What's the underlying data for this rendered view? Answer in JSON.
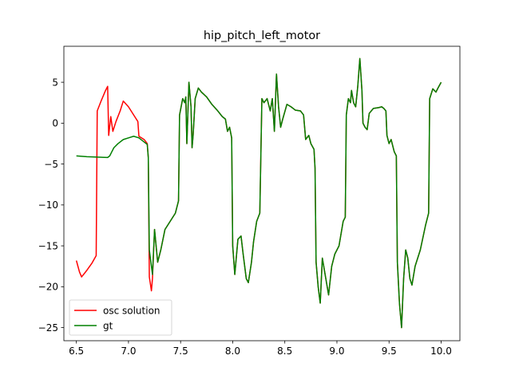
{
  "chart_data": {
    "type": "line",
    "title": "hip_pitch_left_motor",
    "xlabel": "",
    "ylabel": "",
    "xlim": [
      6.38,
      10.18
    ],
    "ylim": [
      -26.6,
      9.4
    ],
    "xticks": [
      6.5,
      7.0,
      7.5,
      8.0,
      8.5,
      9.0,
      9.5,
      10.0
    ],
    "yticks": [
      -25,
      -20,
      -15,
      -10,
      -5,
      0,
      5
    ],
    "xtick_labels": [
      "6.5",
      "7.0",
      "7.5",
      "8.0",
      "8.5",
      "9.0",
      "9.5",
      "10.0"
    ],
    "ytick_labels": [
      "−25",
      "−20",
      "−15",
      "−10",
      "−5",
      "0",
      "5"
    ],
    "grid": false,
    "legend_position": "lower-left",
    "series": [
      {
        "name": "osc solution",
        "color": "#ff0000",
        "points": [
          [
            6.5,
            -16.8
          ],
          [
            6.53,
            -18.2
          ],
          [
            6.55,
            -18.8
          ],
          [
            6.6,
            -18.0
          ],
          [
            6.65,
            -17.1
          ],
          [
            6.69,
            -16.2
          ],
          [
            6.7,
            1.5
          ],
          [
            6.74,
            2.8
          ],
          [
            6.78,
            4.0
          ],
          [
            6.8,
            4.5
          ],
          [
            6.81,
            -1.5
          ],
          [
            6.83,
            0.8
          ],
          [
            6.85,
            -1.0
          ],
          [
            6.88,
            0.2
          ],
          [
            6.92,
            1.5
          ],
          [
            6.95,
            2.7
          ],
          [
            7.0,
            2.0
          ],
          [
            7.05,
            1.0
          ],
          [
            7.09,
            0.2
          ],
          [
            7.1,
            -1.6
          ],
          [
            7.15,
            -2.0
          ],
          [
            7.18,
            -2.5
          ],
          [
            7.19,
            -4.2
          ],
          [
            7.2,
            -18.8
          ],
          [
            7.22,
            -20.5
          ],
          [
            7.23,
            -19.0
          ],
          [
            7.25,
            -13.0
          ],
          [
            7.28,
            -17.0
          ],
          [
            7.31,
            -15.5
          ],
          [
            7.35,
            -13.0
          ],
          [
            7.4,
            -12.0
          ],
          [
            7.45,
            -11.0
          ],
          [
            7.48,
            -9.5
          ],
          [
            7.49,
            1.0
          ],
          [
            7.52,
            3.0
          ],
          [
            7.54,
            2.5
          ],
          [
            7.55,
            3.2
          ],
          [
            7.56,
            -2.5
          ],
          [
            7.58,
            5.0
          ],
          [
            7.6,
            2.0
          ],
          [
            7.61,
            -3.0
          ],
          [
            7.62,
            -1.5
          ],
          [
            7.64,
            3.0
          ],
          [
            7.67,
            4.3
          ],
          [
            7.7,
            3.8
          ],
          [
            7.75,
            3.2
          ],
          [
            7.8,
            2.3
          ],
          [
            7.85,
            1.6
          ],
          [
            7.9,
            0.8
          ],
          [
            7.93,
            0.5
          ],
          [
            7.95,
            -1.0
          ],
          [
            7.97,
            -0.5
          ],
          [
            7.99,
            -1.8
          ],
          [
            8.0,
            -15.0
          ],
          [
            8.02,
            -18.5
          ],
          [
            8.05,
            -14.2
          ],
          [
            8.08,
            -13.8
          ],
          [
            8.1,
            -16.0
          ],
          [
            8.13,
            -19.0
          ],
          [
            8.15,
            -19.5
          ],
          [
            8.18,
            -17.0
          ],
          [
            8.2,
            -14.5
          ],
          [
            8.23,
            -12.0
          ],
          [
            8.26,
            -11.0
          ],
          [
            8.28,
            3.0
          ],
          [
            8.3,
            2.5
          ],
          [
            8.33,
            3.0
          ],
          [
            8.36,
            1.5
          ],
          [
            8.38,
            3.0
          ],
          [
            8.4,
            -1.0
          ],
          [
            8.42,
            6.0
          ],
          [
            8.44,
            2.0
          ],
          [
            8.46,
            -0.5
          ],
          [
            8.48,
            0.5
          ],
          [
            8.52,
            2.3
          ],
          [
            8.56,
            2.0
          ],
          [
            8.6,
            1.6
          ],
          [
            8.65,
            1.5
          ],
          [
            8.68,
            1.0
          ],
          [
            8.7,
            -2.0
          ],
          [
            8.73,
            -1.5
          ],
          [
            8.75,
            -2.5
          ],
          [
            8.78,
            -3.2
          ],
          [
            8.79,
            -5.5
          ],
          [
            8.8,
            -17.0
          ],
          [
            8.82,
            -20.0
          ],
          [
            8.84,
            -22.0
          ],
          [
            8.86,
            -16.5
          ],
          [
            8.88,
            -18.0
          ],
          [
            8.9,
            -19.5
          ],
          [
            8.92,
            -21.0
          ],
          [
            8.95,
            -17.5
          ],
          [
            8.98,
            -16.0
          ],
          [
            9.02,
            -15.0
          ],
          [
            9.06,
            -12.0
          ],
          [
            9.08,
            -11.5
          ],
          [
            9.09,
            1.0
          ],
          [
            9.11,
            3.0
          ],
          [
            9.13,
            2.5
          ],
          [
            9.14,
            4.0
          ],
          [
            9.16,
            2.5
          ],
          [
            9.18,
            2.0
          ],
          [
            9.2,
            4.5
          ],
          [
            9.22,
            7.9
          ],
          [
            9.24,
            4.0
          ],
          [
            9.25,
            0.0
          ],
          [
            9.27,
            -0.5
          ],
          [
            9.29,
            -0.8
          ],
          [
            9.31,
            1.2
          ],
          [
            9.35,
            1.8
          ],
          [
            9.4,
            1.9
          ],
          [
            9.43,
            2.0
          ],
          [
            9.45,
            1.8
          ],
          [
            9.47,
            1.5
          ],
          [
            9.48,
            -1.5
          ],
          [
            9.5,
            -2.5
          ],
          [
            9.52,
            -2.0
          ],
          [
            9.55,
            -3.5
          ],
          [
            9.57,
            -4.0
          ],
          [
            9.58,
            -17.0
          ],
          [
            9.6,
            -22.0
          ],
          [
            9.62,
            -25.0
          ],
          [
            9.64,
            -19.0
          ],
          [
            9.66,
            -15.5
          ],
          [
            9.68,
            -16.5
          ],
          [
            9.7,
            -19.0
          ],
          [
            9.72,
            -19.8
          ],
          [
            9.75,
            -17.5
          ],
          [
            9.8,
            -15.5
          ],
          [
            9.85,
            -12.5
          ],
          [
            9.88,
            -11.0
          ],
          [
            9.89,
            3.0
          ],
          [
            9.92,
            4.2
          ],
          [
            9.95,
            3.8
          ],
          [
            9.97,
            4.3
          ],
          [
            10.0,
            5.0
          ]
        ]
      },
      {
        "name": "gt",
        "color": "#008000",
        "points": [
          [
            6.5,
            -4.0
          ],
          [
            6.6,
            -4.1
          ],
          [
            6.7,
            -4.15
          ],
          [
            6.8,
            -4.2
          ],
          [
            6.82,
            -4.0
          ],
          [
            6.84,
            -3.5
          ],
          [
            6.86,
            -3.0
          ],
          [
            6.9,
            -2.5
          ],
          [
            6.95,
            -2.0
          ],
          [
            7.0,
            -1.8
          ],
          [
            7.05,
            -1.6
          ],
          [
            7.1,
            -1.8
          ],
          [
            7.15,
            -2.3
          ],
          [
            7.18,
            -2.6
          ],
          [
            7.19,
            -4.2
          ],
          [
            7.2,
            -15.5
          ],
          [
            7.22,
            -17.5
          ],
          [
            7.23,
            -18.5
          ],
          [
            7.25,
            -13.0
          ],
          [
            7.28,
            -17.0
          ],
          [
            7.31,
            -15.5
          ],
          [
            7.35,
            -13.0
          ],
          [
            7.4,
            -12.0
          ],
          [
            7.45,
            -11.0
          ],
          [
            7.48,
            -9.5
          ],
          [
            7.49,
            1.0
          ],
          [
            7.52,
            3.0
          ],
          [
            7.54,
            2.5
          ],
          [
            7.55,
            3.2
          ],
          [
            7.56,
            -2.5
          ],
          [
            7.58,
            5.0
          ],
          [
            7.6,
            2.0
          ],
          [
            7.61,
            -3.0
          ],
          [
            7.62,
            -1.5
          ],
          [
            7.64,
            3.0
          ],
          [
            7.67,
            4.3
          ],
          [
            7.7,
            3.8
          ],
          [
            7.75,
            3.2
          ],
          [
            7.8,
            2.3
          ],
          [
            7.85,
            1.6
          ],
          [
            7.9,
            0.8
          ],
          [
            7.93,
            0.5
          ],
          [
            7.95,
            -1.0
          ],
          [
            7.97,
            -0.5
          ],
          [
            7.99,
            -1.8
          ],
          [
            8.0,
            -15.0
          ],
          [
            8.02,
            -18.5
          ],
          [
            8.05,
            -14.2
          ],
          [
            8.08,
            -13.8
          ],
          [
            8.1,
            -16.0
          ],
          [
            8.13,
            -19.0
          ],
          [
            8.15,
            -19.5
          ],
          [
            8.18,
            -17.0
          ],
          [
            8.2,
            -14.5
          ],
          [
            8.23,
            -12.0
          ],
          [
            8.26,
            -11.0
          ],
          [
            8.28,
            3.0
          ],
          [
            8.3,
            2.5
          ],
          [
            8.33,
            3.0
          ],
          [
            8.36,
            1.5
          ],
          [
            8.38,
            3.0
          ],
          [
            8.4,
            -1.0
          ],
          [
            8.42,
            6.0
          ],
          [
            8.44,
            2.0
          ],
          [
            8.46,
            -0.5
          ],
          [
            8.48,
            0.5
          ],
          [
            8.52,
            2.3
          ],
          [
            8.56,
            2.0
          ],
          [
            8.6,
            1.6
          ],
          [
            8.65,
            1.5
          ],
          [
            8.68,
            1.0
          ],
          [
            8.7,
            -2.0
          ],
          [
            8.73,
            -1.5
          ],
          [
            8.75,
            -2.5
          ],
          [
            8.78,
            -3.2
          ],
          [
            8.79,
            -5.5
          ],
          [
            8.8,
            -17.0
          ],
          [
            8.82,
            -20.0
          ],
          [
            8.84,
            -22.0
          ],
          [
            8.86,
            -16.5
          ],
          [
            8.88,
            -18.0
          ],
          [
            8.9,
            -19.5
          ],
          [
            8.92,
            -21.0
          ],
          [
            8.95,
            -17.5
          ],
          [
            8.98,
            -16.0
          ],
          [
            9.02,
            -15.0
          ],
          [
            9.06,
            -12.0
          ],
          [
            9.08,
            -11.5
          ],
          [
            9.09,
            1.0
          ],
          [
            9.11,
            3.0
          ],
          [
            9.13,
            2.5
          ],
          [
            9.14,
            4.0
          ],
          [
            9.16,
            2.5
          ],
          [
            9.18,
            2.0
          ],
          [
            9.2,
            4.5
          ],
          [
            9.22,
            7.9
          ],
          [
            9.24,
            4.0
          ],
          [
            9.25,
            0.0
          ],
          [
            9.27,
            -0.5
          ],
          [
            9.29,
            -0.8
          ],
          [
            9.31,
            1.2
          ],
          [
            9.35,
            1.8
          ],
          [
            9.4,
            1.9
          ],
          [
            9.43,
            2.0
          ],
          [
            9.45,
            1.8
          ],
          [
            9.47,
            1.5
          ],
          [
            9.48,
            -1.5
          ],
          [
            9.5,
            -2.5
          ],
          [
            9.52,
            -2.0
          ],
          [
            9.55,
            -3.5
          ],
          [
            9.57,
            -4.0
          ],
          [
            9.58,
            -17.0
          ],
          [
            9.6,
            -22.0
          ],
          [
            9.62,
            -25.0
          ],
          [
            9.64,
            -19.0
          ],
          [
            9.66,
            -15.5
          ],
          [
            9.68,
            -16.5
          ],
          [
            9.7,
            -19.0
          ],
          [
            9.72,
            -19.8
          ],
          [
            9.75,
            -17.5
          ],
          [
            9.8,
            -15.5
          ],
          [
            9.85,
            -12.5
          ],
          [
            9.88,
            -11.0
          ],
          [
            9.89,
            3.0
          ],
          [
            9.92,
            4.2
          ],
          [
            9.95,
            3.8
          ],
          [
            9.97,
            4.3
          ],
          [
            10.0,
            5.0
          ]
        ]
      }
    ]
  }
}
